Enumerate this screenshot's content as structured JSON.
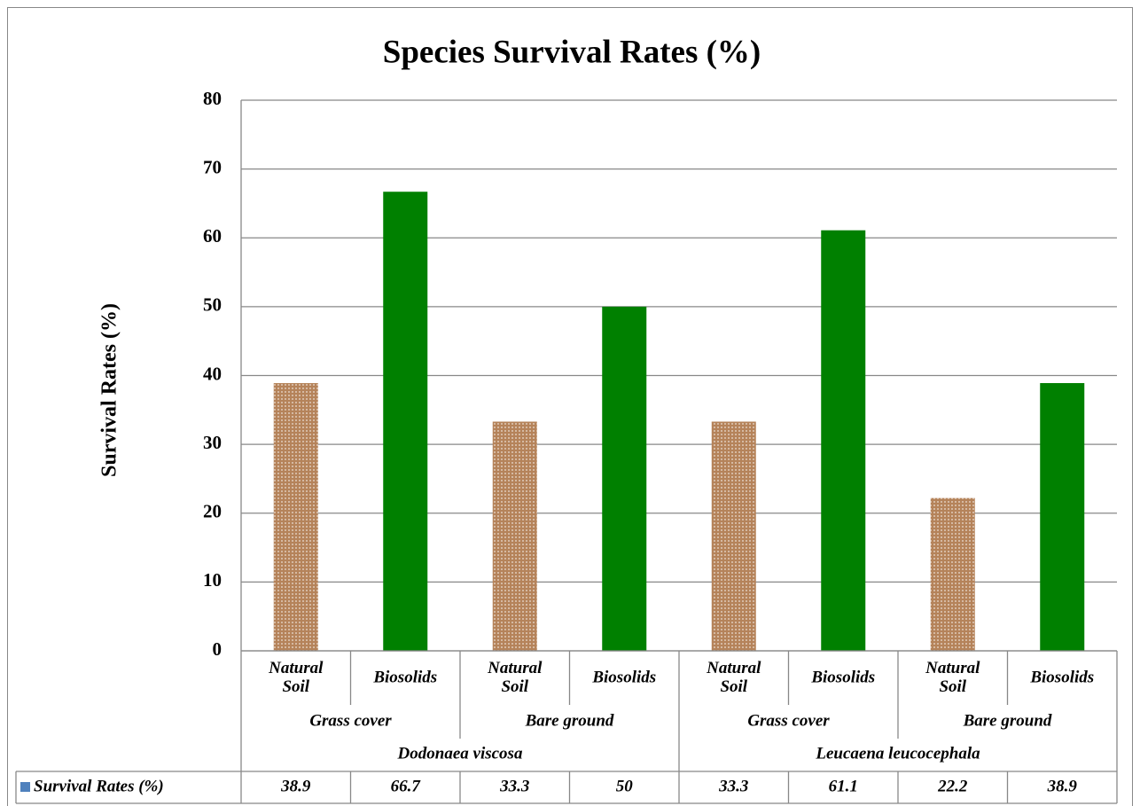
{
  "chart_data": {
    "type": "bar",
    "title": "Species Survival Rates (%)",
    "y_label": "Survival Rates (%)",
    "categories": [
      "Natural Soil",
      "Biosolids",
      "Natural Soil",
      "Biosolids",
      "Natural Soil",
      "Biosolids",
      "Natural Soil",
      "Biosolids"
    ],
    "groups": [
      "Grass cover",
      "Bare ground",
      "Grass cover",
      "Bare ground"
    ],
    "species": [
      "Dodonaea viscosa",
      "Leucaena leucocephala"
    ],
    "series": [
      {
        "name": "Survival Rates (%)",
        "color": "#4f81bd",
        "values": [
          38.9,
          66.7,
          33.3,
          50,
          33.3,
          61.1,
          22.2,
          38.9
        ],
        "colors": [
          "#b5835a",
          "#008000",
          "#b5835a",
          "#008000",
          "#b5835a",
          "#008000",
          "#b5835a",
          "#008000"
        ],
        "textures": [
          "dotted",
          "solid",
          "dotted",
          "solid",
          "dotted",
          "solid",
          "dotted",
          "solid"
        ]
      }
    ],
    "ylim": [
      0,
      80
    ],
    "yticks": [
      0,
      10,
      20,
      30,
      40,
      50,
      60,
      70,
      80
    ],
    "grid": true,
    "data_table": true
  }
}
